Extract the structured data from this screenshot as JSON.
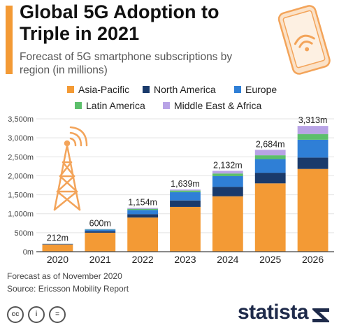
{
  "title": "Global 5G Adoption to Triple in 2021",
  "subtitle": "Forecast of 5G smartphone subscriptions by region (in millions)",
  "colors": {
    "accent": "#f39a35",
    "asia_pacific": "#f39a35",
    "north_america": "#1a3a6b",
    "europe": "#2f7fd6",
    "latin_america": "#5cbf6b",
    "middle_east_africa": "#b8a3e6",
    "axis": "#444444",
    "grid": "#e3e3e3",
    "illustration": "#f3a45a"
  },
  "legend": {
    "asia_pacific": "Asia-Pacific",
    "north_america": "North America",
    "europe": "Europe",
    "latin_america": "Latin America",
    "middle_east_africa": "Middle East & Africa"
  },
  "chart_data": {
    "type": "bar",
    "stacked": true,
    "categories": [
      "2020",
      "2021",
      "2022",
      "2023",
      "2024",
      "2025",
      "2026"
    ],
    "series": [
      {
        "name": "Asia-Pacific",
        "values": [
          190,
          500,
          900,
          1180,
          1460,
          1800,
          2180
        ]
      },
      {
        "name": "North America",
        "values": [
          10,
          40,
          90,
          170,
          250,
          280,
          300
        ]
      },
      {
        "name": "Europe",
        "values": [
          6,
          45,
          110,
          220,
          280,
          360,
          470
        ]
      },
      {
        "name": "Latin America",
        "values": [
          3,
          8,
          30,
          40,
          70,
          100,
          150
        ]
      },
      {
        "name": "Middle East & Africa",
        "values": [
          3,
          7,
          24,
          29,
          72,
          144,
          213
        ]
      }
    ],
    "totals": [
      "212m",
      "600m",
      "1,154m",
      "1,639m",
      "2,132m",
      "2,684m",
      "3,313m"
    ],
    "y_ticks": [
      "0m",
      "500m",
      "1,000m",
      "1,500m",
      "2,000m",
      "2,500m",
      "3,000m",
      "3,500m"
    ],
    "ylim": [
      0,
      3500
    ],
    "grid": true,
    "legend_position": "top"
  },
  "footer": {
    "note": "Forecast as of November 2020",
    "source": "Source: Ericsson Mobility Report",
    "brand": "statista",
    "icons": [
      "cc-icon",
      "info-icon",
      "equals-icon"
    ]
  }
}
